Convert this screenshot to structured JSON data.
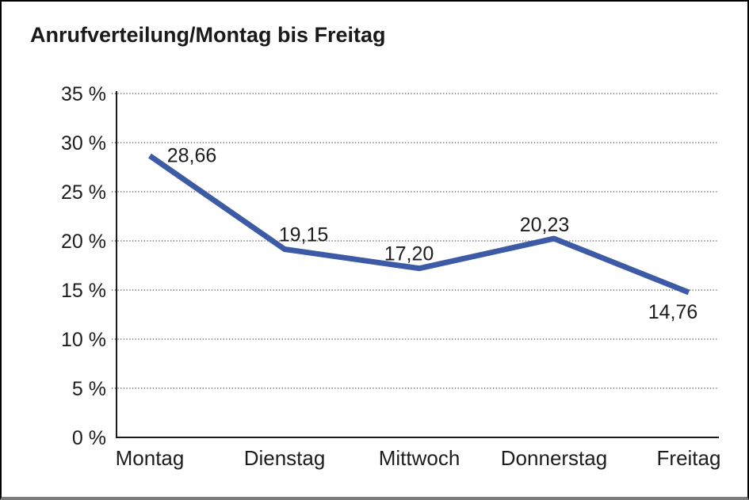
{
  "window": {
    "background": "#ffffff",
    "border_color": "#000000",
    "bottom_border_color": "#7c7c7c"
  },
  "header": {
    "title": "Anrufverteilung/Montag bis Freitag"
  },
  "chart_data": {
    "type": "line",
    "title": "Anrufverteilung/Montag bis Freitag",
    "categories": [
      "Montag",
      "Dienstag",
      "Mittwoch",
      "Donnerstag",
      "Freitag"
    ],
    "values": [
      28.66,
      19.15,
      17.2,
      20.23,
      14.76
    ],
    "value_labels": [
      "28,66",
      "19,15",
      "17,20",
      "20,23",
      "14,76"
    ],
    "ylabel": "",
    "xlabel": "",
    "ylim": [
      0,
      35
    ],
    "ytick_step": 5,
    "ytick_labels": [
      "0 %",
      "5 %",
      "10 %",
      "15 %",
      "20 %",
      "25 %",
      "30 %",
      "35 %"
    ],
    "grid": "horizontal-dotted",
    "legend": "none",
    "line_color": "#3C5AA5",
    "grid_color": "#555555",
    "axis_color": "#1c1c1c",
    "text_color": "#1d1d1d"
  }
}
